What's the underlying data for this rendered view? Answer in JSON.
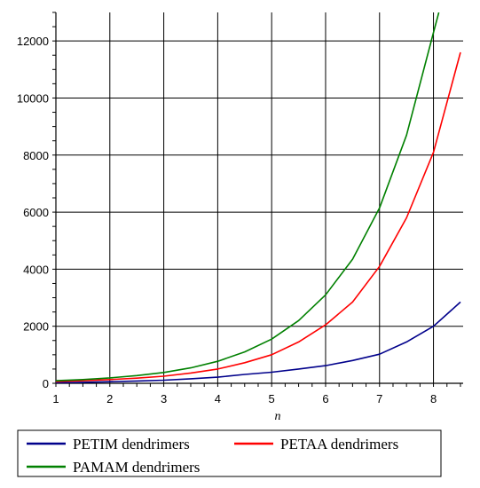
{
  "chart_data": {
    "type": "line",
    "title": "",
    "xlabel": "n",
    "ylabel": "",
    "xlim": [
      1,
      8.55
    ],
    "ylim": [
      0,
      13000
    ],
    "x_ticks": [
      1,
      2,
      3,
      4,
      5,
      6,
      7,
      8
    ],
    "y_ticks": [
      0,
      2000,
      4000,
      6000,
      8000,
      10000,
      12000
    ],
    "grid": true,
    "legend_position": "bottom",
    "series": [
      {
        "name": "PETIM dendrimers",
        "color": "#00008b",
        "x": [
          1,
          1.5,
          2,
          2.5,
          3,
          3.5,
          4,
          4.5,
          5,
          5.5,
          6,
          6.5,
          7,
          7.5,
          8,
          8.5
        ],
        "y": [
          20,
          35,
          55,
          80,
          110,
          160,
          215,
          310,
          390,
          500,
          620,
          800,
          1020,
          1450,
          2000,
          2850
        ]
      },
      {
        "name": "PETAA dendrimers",
        "color": "#ff0000",
        "x": [
          1,
          1.5,
          2,
          2.5,
          3,
          3.5,
          4,
          4.5,
          5,
          5.5,
          6,
          6.5,
          7,
          7.5,
          8,
          8.5
        ],
        "y": [
          60,
          90,
          130,
          180,
          250,
          360,
          500,
          720,
          1000,
          1450,
          2050,
          2850,
          4100,
          5800,
          8100,
          11600
        ]
      },
      {
        "name": "PAMAM dendrimers",
        "color": "#008000",
        "x": [
          1,
          1.5,
          2,
          2.5,
          3,
          3.5,
          4,
          4.5,
          5,
          5.5,
          6,
          6.5,
          7,
          7.5,
          8,
          8.1
        ],
        "y": [
          90,
          130,
          190,
          270,
          380,
          540,
          770,
          1100,
          1550,
          2200,
          3100,
          4350,
          6150,
          8700,
          12300,
          13000
        ]
      }
    ]
  }
}
